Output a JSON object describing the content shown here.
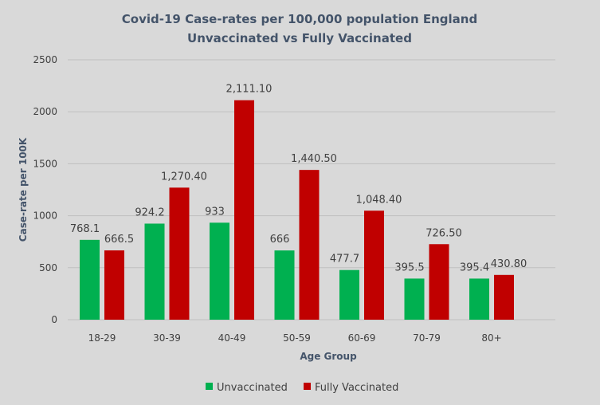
{
  "chart_data": {
    "type": "bar",
    "title": "Covid-19 Case-rates per 100,000 population England",
    "subtitle": "Unvaccinated vs Fully Vaccinated",
    "xlabel": "Age Group",
    "ylabel": "Case-rate per 100K",
    "ylim": [
      0,
      2500
    ],
    "yticks": [
      "0",
      "500",
      "1000",
      "1500",
      "2000",
      "2500"
    ],
    "grid": true,
    "legend_position": "bottom",
    "categories": [
      "18-29",
      "30-39",
      "40-49",
      "50-59",
      "60-69",
      "70-79",
      "80+"
    ],
    "series": [
      {
        "name": "Unvaccinated",
        "color": "#00b050",
        "values": [
          768.1,
          924.2,
          933,
          666,
          477.7,
          395.5,
          395.4
        ],
        "labels": [
          "768.1",
          "924.2",
          "933",
          "666",
          "477.7",
          "395.5",
          "395.4"
        ]
      },
      {
        "name": "Fully Vaccinated",
        "color": "#c00000",
        "values": [
          666.5,
          1270.4,
          2111.1,
          1440.5,
          1048.4,
          726.5,
          430.8
        ],
        "labels": [
          "666.5",
          "1,270.40",
          "2,111.10",
          "1,440.50",
          "1,048.40",
          "726.50",
          "430.80"
        ]
      }
    ]
  }
}
